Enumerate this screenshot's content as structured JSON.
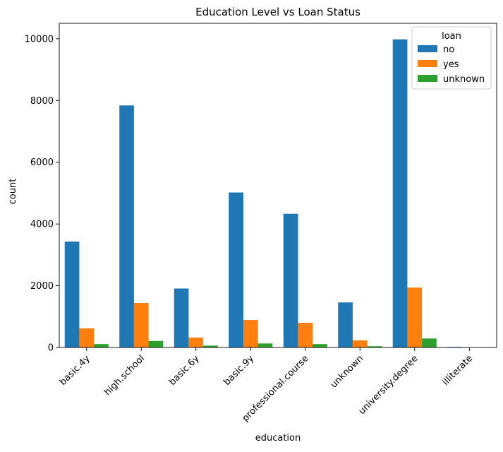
{
  "chart_data": {
    "type": "bar",
    "title": "Education Level vs Loan Status",
    "xlabel": "education",
    "ylabel": "count",
    "categories": [
      "basic.4y",
      "high.school",
      "basic.6y",
      "basic.9y",
      "professional.course",
      "unknown",
      "university.degree",
      "illiterate"
    ],
    "series": [
      {
        "name": "no",
        "color": "#1f77b4",
        "values": [
          3430,
          7840,
          1910,
          5020,
          4330,
          1460,
          9980,
          18
        ]
      },
      {
        "name": "yes",
        "color": "#ff7f0e",
        "values": [
          620,
          1440,
          320,
          890,
          800,
          230,
          1940,
          0
        ]
      },
      {
        "name": "unknown",
        "color": "#2ca02c",
        "values": [
          110,
          210,
          60,
          130,
          110,
          40,
          290,
          0
        ]
      }
    ],
    "ylim": [
      0,
      10500
    ],
    "yticks": [
      0,
      2000,
      4000,
      6000,
      8000,
      10000
    ],
    "legend": {
      "title": "loan",
      "position": "top-right"
    },
    "grid": false
  }
}
